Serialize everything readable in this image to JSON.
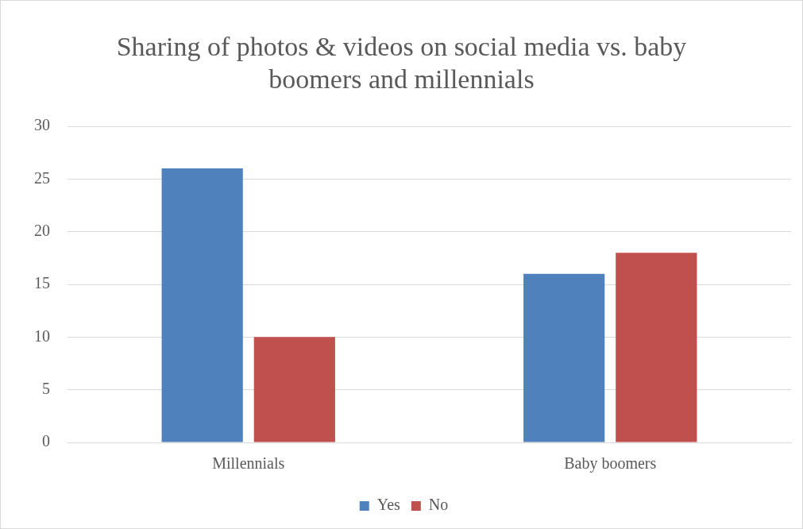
{
  "chart_data": {
    "type": "bar",
    "title": "Sharing of photos & videos on social media vs. baby boomers and millennials",
    "categories": [
      "Millennials",
      "Baby boomers"
    ],
    "series": [
      {
        "name": "Yes",
        "color": "#4f81bd",
        "values": [
          26,
          16
        ]
      },
      {
        "name": "No",
        "color": "#c0504d",
        "values": [
          10,
          18
        ]
      }
    ],
    "ylim": [
      0,
      30
    ],
    "yticks": [
      0,
      5,
      10,
      15,
      20,
      25,
      30
    ],
    "grid": "y",
    "legend": "bottom"
  }
}
